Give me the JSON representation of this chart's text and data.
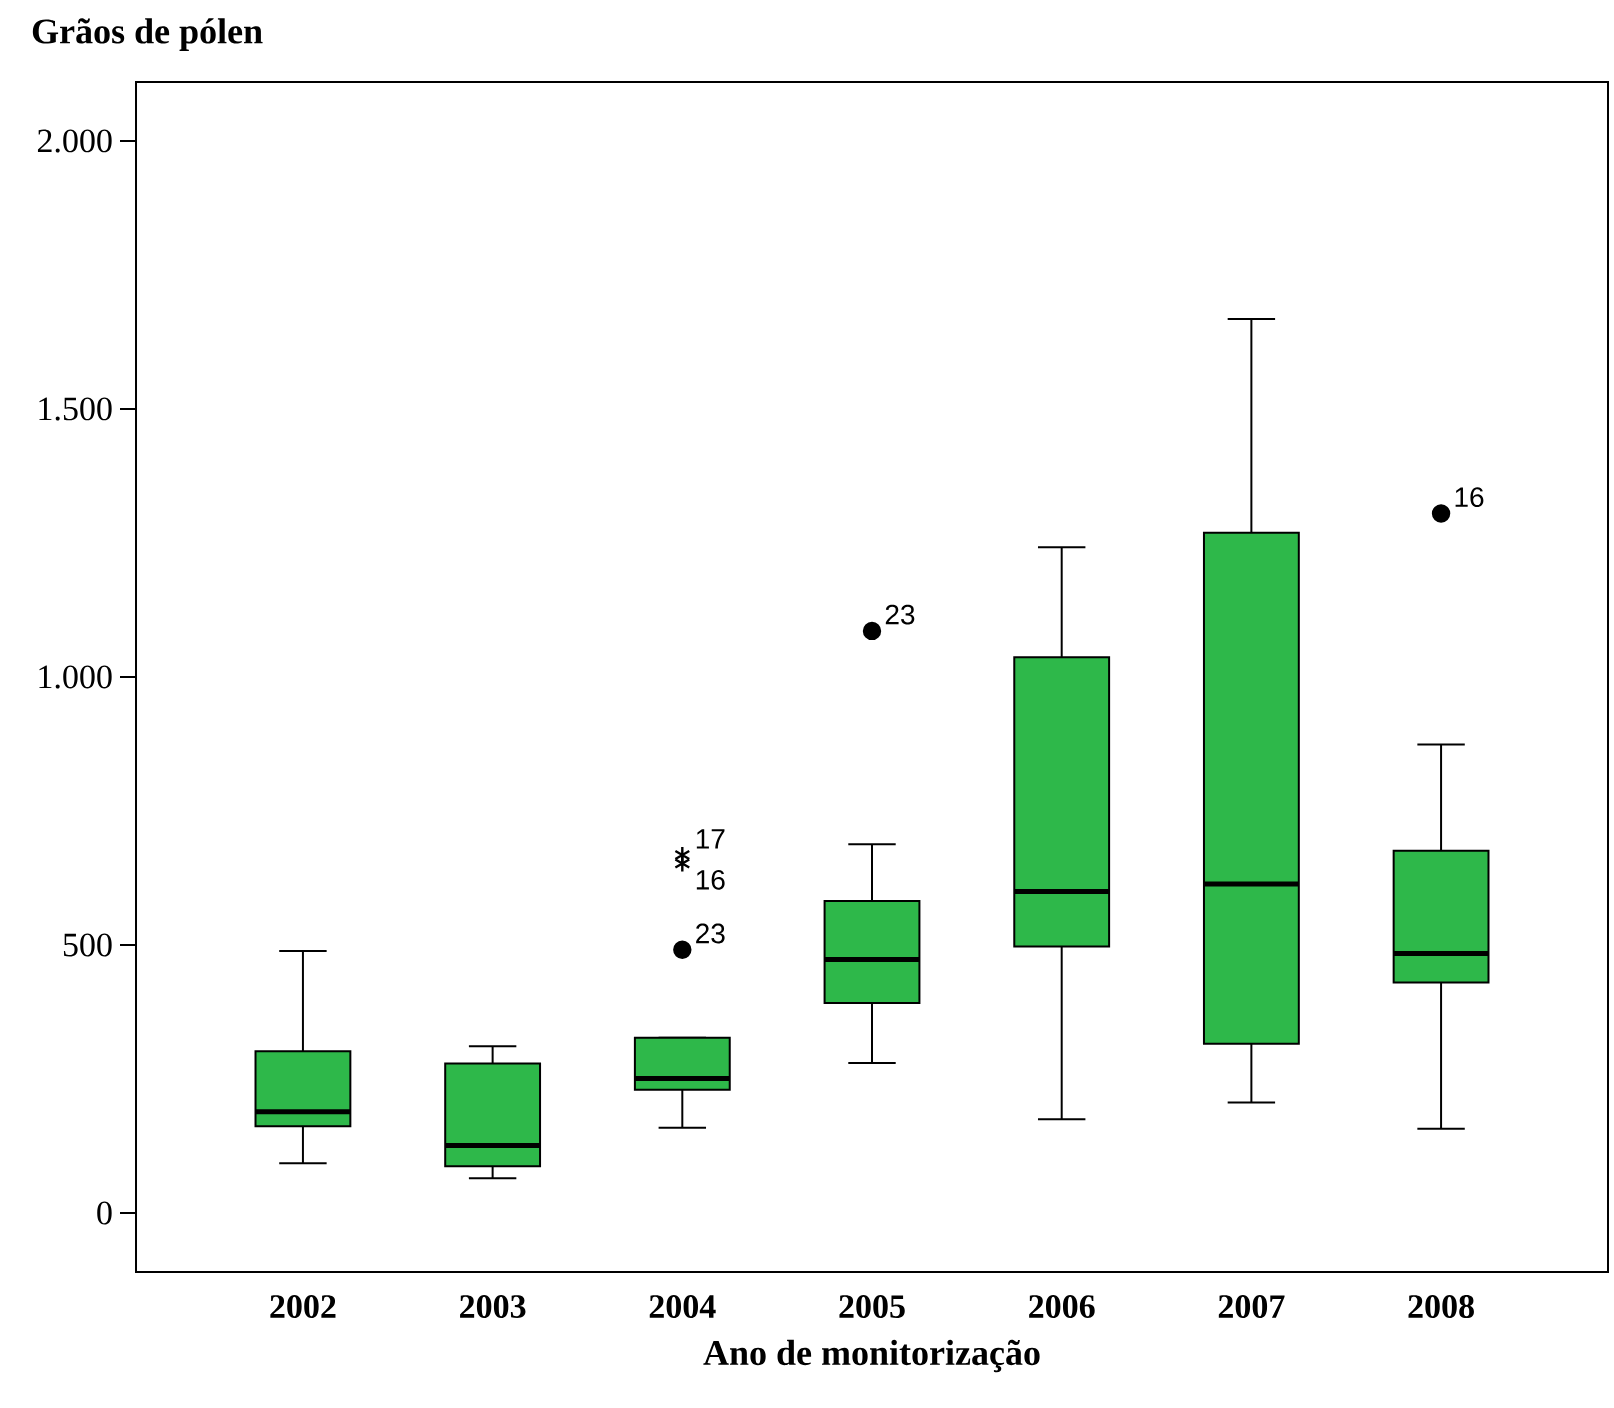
{
  "chart_data": {
    "type": "box",
    "ylabel": "Grãos de pólen",
    "xlabel": "Ano de monitorização",
    "categories": [
      "2002",
      "2003",
      "2004",
      "2005",
      "2006",
      "2007",
      "2008"
    ],
    "color": "#2eb84a",
    "boxes": [
      {
        "low": 93,
        "q1": 162,
        "median": 189,
        "q3": 302,
        "high": 489
      },
      {
        "low": 65,
        "q1": 87,
        "median": 126,
        "q3": 279,
        "high": 311
      },
      {
        "low": 159,
        "q1": 230,
        "median": 251,
        "q3": 327,
        "high": 327
      },
      {
        "low": 280,
        "q1": 392,
        "median": 473,
        "q3": 582,
        "high": 688
      },
      {
        "low": 175,
        "q1": 497,
        "median": 600,
        "q3": 1037,
        "high": 1242
      },
      {
        "low": 206,
        "q1": 316,
        "median": 614,
        "q3": 1269,
        "high": 1668
      },
      {
        "low": 157,
        "q1": 430,
        "median": 484,
        "q3": 676,
        "high": 874
      }
    ],
    "series": [
      {
        "type": "scatter",
        "values": [
          null,
          null,
          491,
          1086,
          null,
          null,
          1305
        ],
        "marker": "circle",
        "color": "#000000"
      },
      {
        "type": "scatter",
        "values": [
          null,
          null,
          668,
          null,
          null,
          null,
          null
        ],
        "marker": "cross",
        "color": "#000000"
      },
      {
        "type": "scatter",
        "values": [
          null,
          null,
          652,
          null,
          null,
          null,
          null
        ],
        "marker": "cross",
        "color": "#000000"
      }
    ],
    "annotations": [
      {
        "text": "17",
        "x": "2004",
        "y": 668
      },
      {
        "text": "16",
        "x": "2004",
        "y": 652
      },
      {
        "text": "23",
        "x": "2004",
        "y": 491
      },
      {
        "text": "23",
        "x": "2005",
        "y": 1086
      },
      {
        "text": "16",
        "x": "2008",
        "y": 1305
      }
    ],
    "ylim": [
      -110,
      2110
    ],
    "yticks": [
      {
        "value": 0,
        "label": "0"
      },
      {
        "value": 500,
        "label": "500"
      },
      {
        "value": 1000,
        "label": "1.000"
      },
      {
        "value": 1500,
        "label": "1.500"
      },
      {
        "value": 2000,
        "label": "2.000"
      }
    ],
    "grid": false
  }
}
